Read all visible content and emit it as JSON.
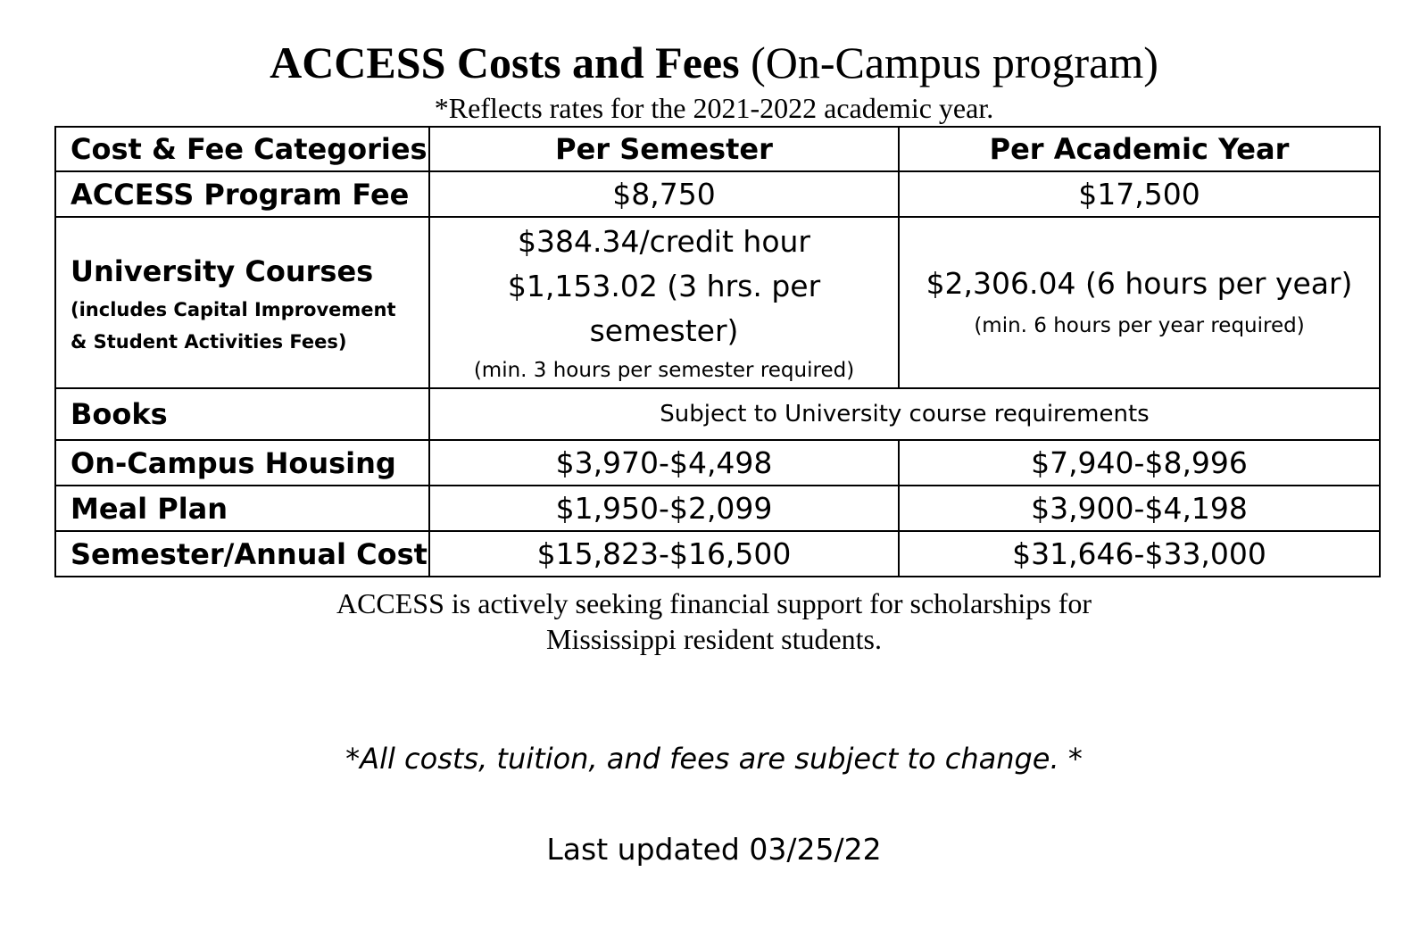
{
  "title": {
    "bold_part": "ACCESS Costs and Fees",
    "normal_part": "(On-Campus program)"
  },
  "subtitle": "*Reflects rates for the 2021-2022 academic year.",
  "table": {
    "headers": [
      "Cost & Fee Categories",
      "Per Semester",
      "Per Academic Year"
    ],
    "program_fee": {
      "category": "ACCESS Program Fee",
      "per_semester": "$8,750",
      "per_year": "$17,500"
    },
    "university_courses": {
      "category": "University Courses",
      "category_sub_line1": "(includes Capital Improvement",
      "category_sub_line2": "& Student Activities Fees)",
      "per_semester_line1": "$384.34/credit hour",
      "per_semester_line2": "$1,153.02 (3 hrs. per",
      "per_semester_line3": "semester)",
      "per_semester_note": "(min. 3 hours per semester required)",
      "per_year_line1": "$2,306.04 (6 hours per year)",
      "per_year_note": "(min. 6 hours per year required)"
    },
    "books": {
      "category": "Books",
      "note": "Subject to University course requirements"
    },
    "housing": {
      "category": "On-Campus Housing",
      "per_semester": "$3,970-$4,498",
      "per_year": "$7,940-$8,996"
    },
    "meal_plan": {
      "category": "Meal Plan",
      "per_semester": "$1,950-$2,099",
      "per_year": "$3,900-$4,198"
    },
    "total": {
      "category": "Semester/Annual Cost",
      "per_semester": "$15,823-$16,500",
      "per_year": "$31,646-$33,000"
    }
  },
  "footnote_line1": "ACCESS is actively seeking financial support for scholarships for",
  "footnote_line2": "Mississippi resident students.",
  "disclaimer": "*All costs, tuition, and fees are subject to change. *",
  "last_updated": "Last updated 03/25/22"
}
